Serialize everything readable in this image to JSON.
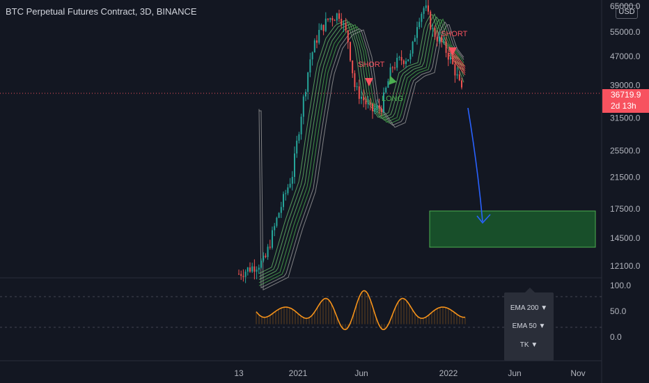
{
  "header": {
    "title": "BTC Perpetual Futures Contract, 3D, BINANCE"
  },
  "currency_button": "USD",
  "last_price": {
    "value": "36719.9",
    "countdown": "2d 13h"
  },
  "price_axis_labels": [
    "65000.0",
    "55000.0",
    "47000.0",
    "39000.0",
    "31500.0",
    "25500.0",
    "21500.0",
    "17500.0",
    "14500.0",
    "12100.0"
  ],
  "oscillator_axis_labels": [
    "100.0",
    "50.0",
    "0.0"
  ],
  "time_axis_labels": [
    "13",
    "2021",
    "Jun",
    "2022",
    "Jun",
    "Nov"
  ],
  "annotations": {
    "short_1": "SHORT",
    "long_1": "LONG",
    "short_2": "SHORT"
  },
  "indicator_menu": {
    "items": [
      "EMA 200 ▼",
      "EMA 50 ▼",
      "TK ▼"
    ]
  },
  "colors": {
    "background": "#131722",
    "up": "#26a69a",
    "down": "#ef5350",
    "target_zone": "#1e7d32",
    "arrow": "#2962ff",
    "oscillator": "#f7931a",
    "price_tag": "#f7525f"
  },
  "chart_data": [
    {
      "type": "candlestick",
      "title": "BTC Perpetual Futures Contract, 3D, BINANCE",
      "y_ticks": [
        65000,
        55000,
        47000,
        39000,
        31500,
        25500,
        21500,
        17500,
        14500,
        12100
      ],
      "x_ticks": [
        "13",
        "2021",
        "Jun",
        "2022",
        "Jun",
        "Nov"
      ],
      "approx_close_path": [
        {
          "x": "mid Oct 2020",
          "close": 11500
        },
        {
          "x": "Nov 2020",
          "close": 15500
        },
        {
          "x": "Dec 2020",
          "close": 20000
        },
        {
          "x": "Jan 2021",
          "close": 34000
        },
        {
          "x": "Feb 2021",
          "close": 48000
        },
        {
          "x": "Mar 2021",
          "close": 58000
        },
        {
          "x": "Apr 2021",
          "close": 62000
        },
        {
          "x": "May 2021",
          "close": 42000
        },
        {
          "x": "Jun 2021",
          "close": 35000
        },
        {
          "x": "Jul 2021",
          "close": 32000
        },
        {
          "x": "Aug 2021",
          "close": 46000
        },
        {
          "x": "Sep 2021",
          "close": 45000
        },
        {
          "x": "Oct 2021",
          "close": 60000
        },
        {
          "x": "Nov 2021",
          "close": 66000
        },
        {
          "x": "Dec 2021",
          "close": 48000
        },
        {
          "x": "Jan 2022",
          "close": 36719.9
        }
      ],
      "signals": [
        {
          "label": "SHORT",
          "price_near": 42000,
          "time": "May 2021"
        },
        {
          "label": "LONG",
          "price_near": 38000,
          "time": "Jul 2021"
        },
        {
          "label": "SHORT",
          "price_near": 50000,
          "time": "Dec 2021"
        }
      ],
      "target_zone": {
        "price_from": 13600,
        "price_to": 17500
      },
      "last_price": 36719.9,
      "grid": false
    },
    {
      "type": "line",
      "series": [],
      "ylim": [
        0,
        100
      ],
      "y_ticks": [
        100,
        50,
        0
      ],
      "reference_lines": [
        80,
        20
      ]
    }
  ]
}
